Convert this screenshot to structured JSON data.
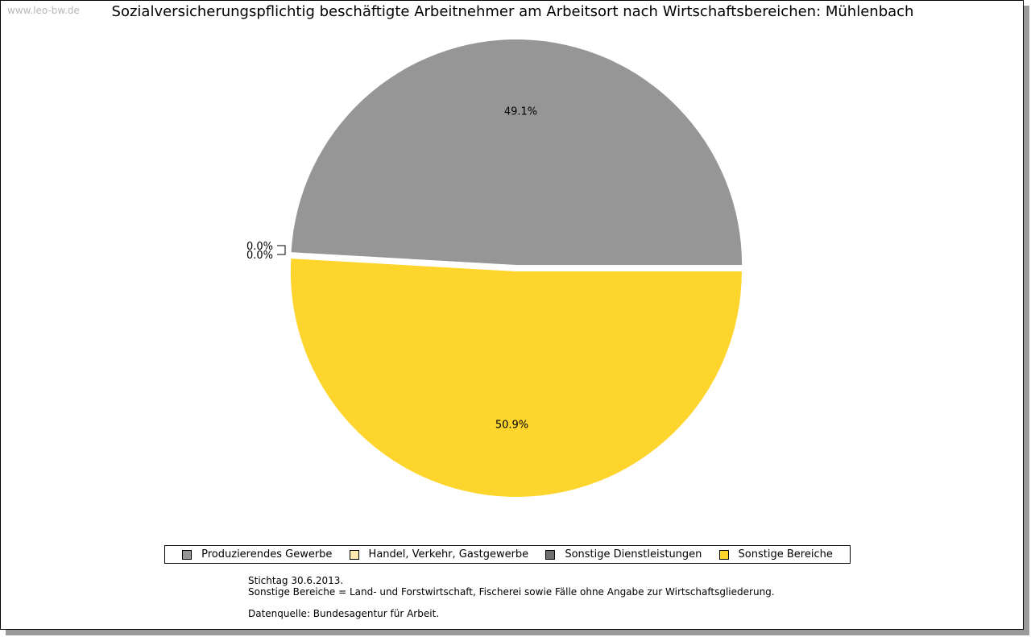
{
  "watermark": "www.leo-bw.de",
  "chart_data": {
    "type": "pie",
    "title": "Sozialversicherungspflichtig beschäftigte Arbeitnehmer am Arbeitsort nach Wirtschaftsbereichen: Mühlenbach",
    "legend_position": "bottom",
    "slices": [
      {
        "name": "Produzierendes Gewerbe",
        "value": 49.1,
        "label": "49.1%",
        "color": "#969696"
      },
      {
        "name": "Handel, Verkehr, Gastgewerbe",
        "value": 0.0,
        "label": "0.0%",
        "color": "#fde9b0"
      },
      {
        "name": "Sonstige Dienstleistungen",
        "value": 0.0,
        "label": "0.0%",
        "color": "#6e6e6e"
      },
      {
        "name": "Sonstige Bereiche",
        "value": 50.9,
        "label": "50.9%",
        "color": "#fdd52c"
      }
    ]
  },
  "notes": {
    "line1": "Stichtag 30.6.2013.",
    "line2": "Sonstige Bereiche = Land- und Forstwirtschaft, Fischerei sowie Fälle ohne Angabe zur Wirtschaftsgliederung.",
    "line3": "Datenquelle: Bundesagentur für Arbeit."
  }
}
